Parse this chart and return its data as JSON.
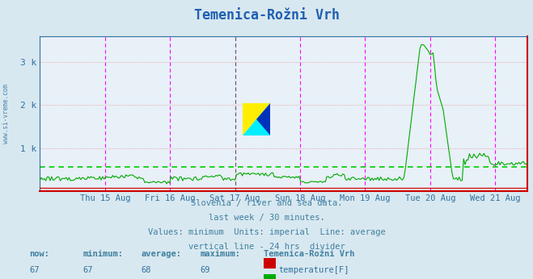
{
  "title": "Temenica-Rožni Vrh",
  "background_color": "#d8e8f0",
  "plot_bg_color": "#e8f0f8",
  "grid_color": "#c8d0d8",
  "x_start_day": 0,
  "x_end_day": 7.5,
  "n_points": 336,
  "temp_min": 67,
  "temp_max": 69,
  "temp_avg": 68,
  "temp_now": 67,
  "flow_min": 197,
  "flow_max": 3405,
  "flow_avg": 558,
  "flow_now": 617,
  "flow_avg_value": 558,
  "temp_avg_value": 68,
  "ylabel_color": "#4080a0",
  "title_color": "#2060b0",
  "tick_label_color": "#3070a0",
  "text_color": "#4080a0",
  "temp_line_color": "#cc0000",
  "flow_line_color": "#00aa00",
  "flow_avg_color": "#00cc00",
  "divider_color_pink": "#ff00ff",
  "divider_color_black": "#606060",
  "spine_bottom_color": "#cc0000",
  "spine_right_color": "#cc0000",
  "spine_top_color": "#3070a0",
  "spine_left_color": "#3070a0",
  "subtitle_lines": [
    "Slovenia / river and sea data.",
    "last week / 30 minutes.",
    "Values: minimum  Units: imperial  Line: average",
    "vertical line - 24 hrs  divider"
  ],
  "x_tick_labels": [
    "Thu 15 Aug",
    "Fri 16 Aug",
    "Sat 17 Aug",
    "Sun 18 Aug",
    "Mon 19 Aug",
    "Tue 20 Aug",
    "Wed 21 Aug"
  ],
  "x_tick_positions": [
    1,
    2,
    3,
    4,
    5,
    6,
    7
  ],
  "y_tick_labels": [
    "1 k",
    "2 k",
    "3 k"
  ],
  "y_tick_positions": [
    1000,
    2000,
    3000
  ],
  "ylim": [
    0,
    3600
  ],
  "xlim": [
    0,
    7.5
  ],
  "logo_yellow": "#ffee00",
  "logo_cyan": "#00eeff",
  "logo_blue": "#0033bb"
}
